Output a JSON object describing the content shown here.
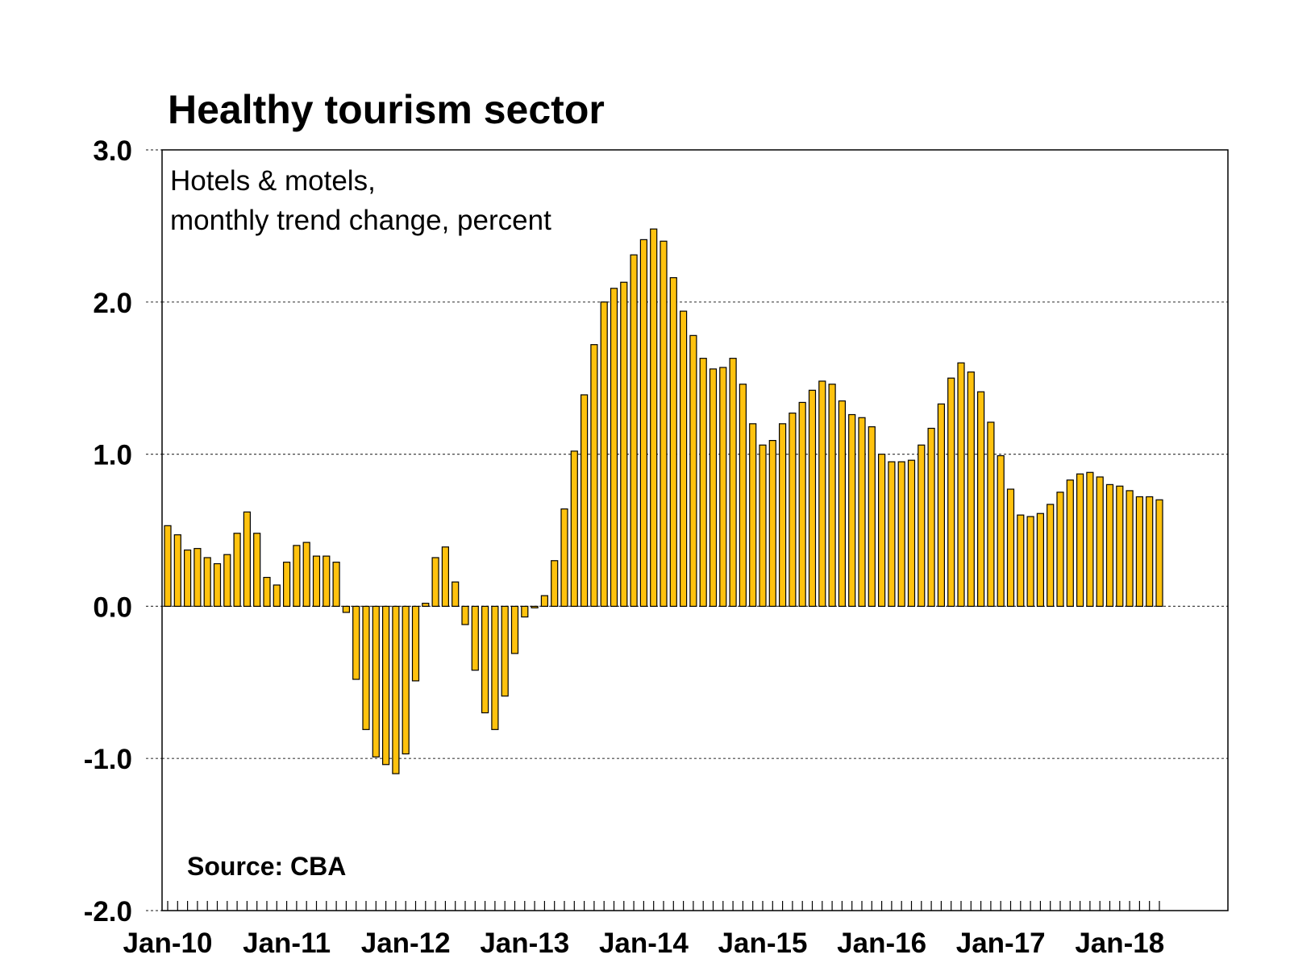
{
  "chart_data": {
    "type": "bar",
    "title": "Healthy tourism sector",
    "subtitle_lines": [
      "Hotels & motels,",
      "monthly trend change, percent"
    ],
    "source": "Source: CBA",
    "ylim": [
      -2.0,
      3.0
    ],
    "y_ticks": [
      "3.0",
      "2.0",
      "1.0",
      "0.0",
      "-1.0",
      "-2.0"
    ],
    "y_tick_values": [
      3.0,
      2.0,
      1.0,
      0.0,
      -1.0,
      -2.0
    ],
    "x_tick_labels": [
      "Jan-10",
      "Jan-11",
      "Jan-12",
      "Jan-13",
      "Jan-14",
      "Jan-15",
      "Jan-16",
      "Jan-17",
      "Jan-18"
    ],
    "start_label": "Jan-10",
    "grid": true,
    "bar_color": "#FFC20E",
    "values": [
      0.53,
      0.47,
      0.37,
      0.38,
      0.32,
      0.28,
      0.34,
      0.48,
      0.62,
      0.48,
      0.19,
      0.14,
      0.29,
      0.4,
      0.42,
      0.33,
      0.33,
      0.29,
      -0.04,
      -0.48,
      -0.81,
      -0.99,
      -1.04,
      -1.1,
      -0.97,
      -0.49,
      0.02,
      0.32,
      0.39,
      0.16,
      -0.12,
      -0.42,
      -0.7,
      -0.81,
      -0.59,
      -0.31,
      -0.07,
      -0.01,
      0.07,
      0.3,
      0.64,
      1.02,
      1.39,
      1.72,
      2.0,
      2.09,
      2.13,
      2.31,
      2.41,
      2.48,
      2.4,
      2.16,
      1.94,
      1.78,
      1.63,
      1.56,
      1.57,
      1.63,
      1.46,
      1.2,
      1.06,
      1.09,
      1.2,
      1.27,
      1.34,
      1.42,
      1.48,
      1.46,
      1.35,
      1.26,
      1.24,
      1.18,
      1.0,
      0.95,
      0.95,
      0.96,
      1.06,
      1.17,
      1.33,
      1.5,
      1.6,
      1.54,
      1.41,
      1.21,
      0.99,
      0.77,
      0.6,
      0.59,
      0.61,
      0.67,
      0.75,
      0.83,
      0.87,
      0.88,
      0.85,
      0.8,
      0.79,
      0.76,
      0.72,
      0.72,
      0.7
    ]
  }
}
